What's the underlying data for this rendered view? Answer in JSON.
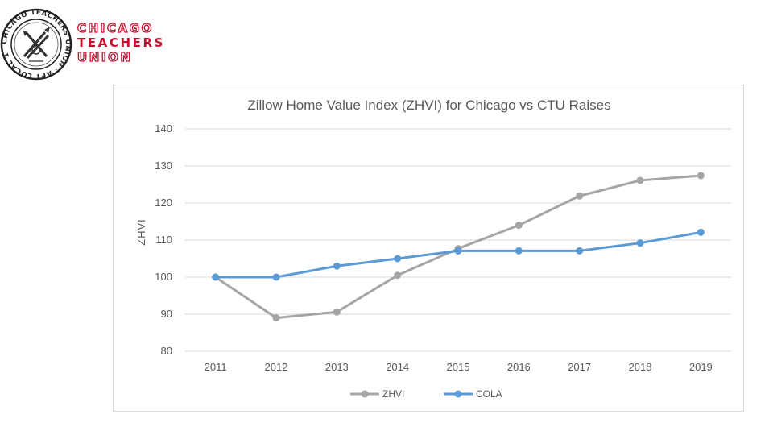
{
  "logo": {
    "lines": [
      "CHICAGO",
      "TEACHERS",
      "UNION"
    ],
    "seal_text": "CHICAGO TEACHERS UNION · AFT LOCAL 1",
    "color": "#c8102e"
  },
  "chart_data": {
    "type": "line",
    "title": "Zillow Home Value Index (ZHVI) for Chicago vs CTU Raises",
    "xlabel": "",
    "ylabel": "ZHVI",
    "categories": [
      "2011",
      "2012",
      "2013",
      "2014",
      "2015",
      "2016",
      "2017",
      "2018",
      "2019"
    ],
    "ylim": [
      80,
      140
    ],
    "yticks": [
      "80",
      "90",
      "100",
      "110",
      "120",
      "130",
      "140"
    ],
    "grid": true,
    "legend": "bottom-center",
    "series": [
      {
        "name": "ZHVI",
        "color": "#a5a5a5",
        "values": [
          100,
          89,
          90.6,
          100.5,
          107.7,
          114,
          121.9,
          126.1,
          127.4
        ]
      },
      {
        "name": "COLA",
        "color": "#5b9bd5",
        "values": [
          100,
          100,
          103,
          105,
          107.1,
          107.1,
          107.1,
          109.2,
          112.1
        ]
      }
    ]
  }
}
